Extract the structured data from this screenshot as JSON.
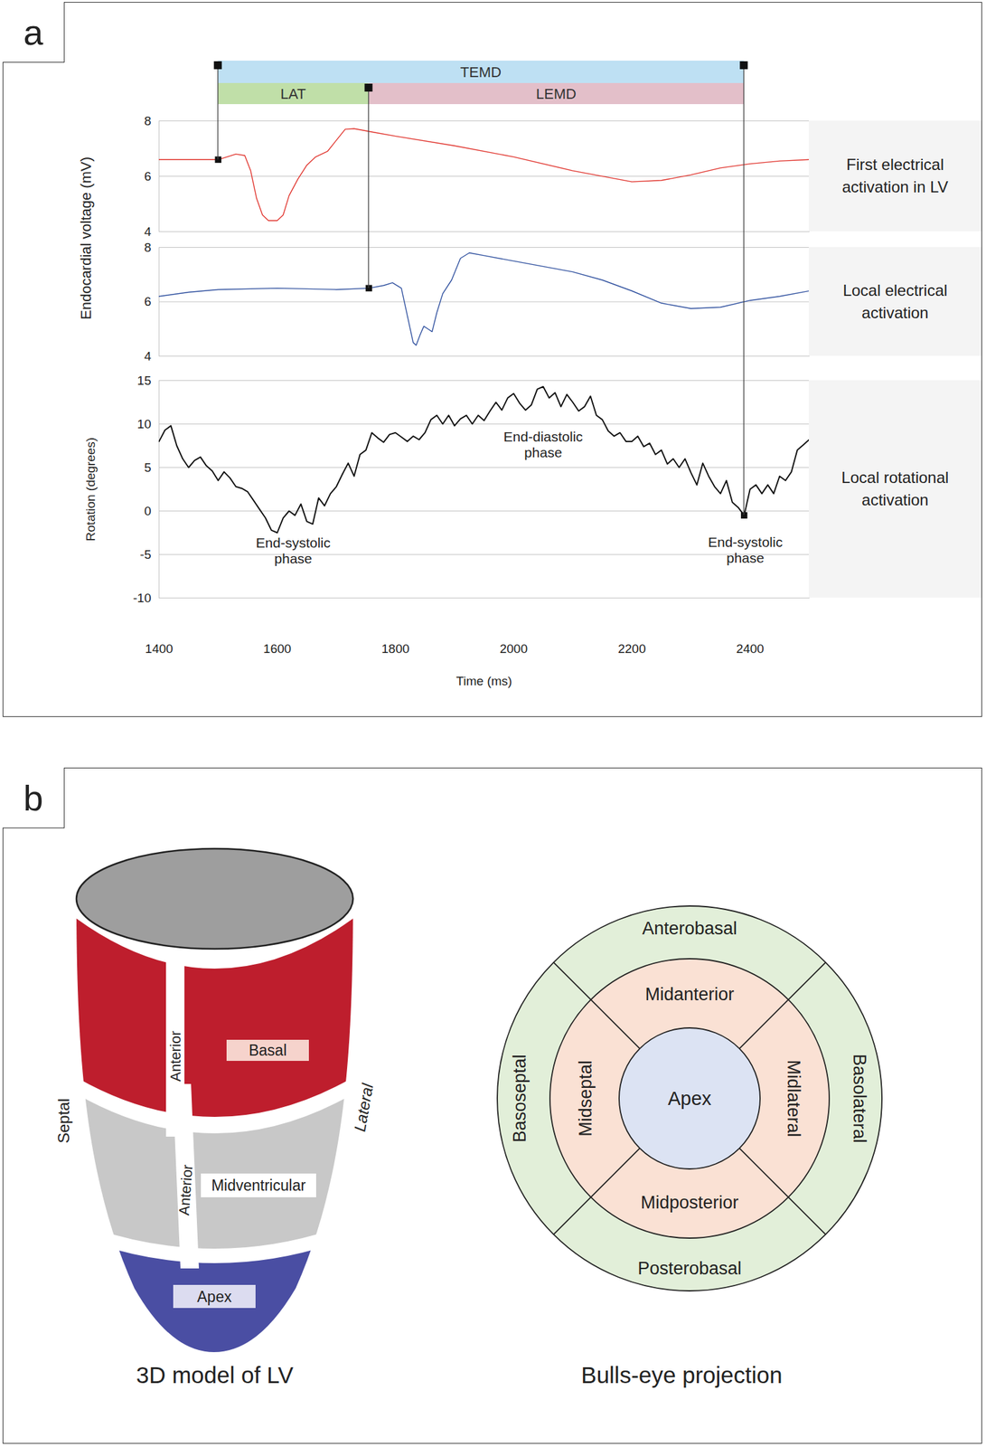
{
  "chart_data": [
    {
      "type": "line",
      "title": "First electrical activation in LV",
      "color": "#e0322b",
      "x": [
        1400,
        1500,
        1515,
        1530,
        1545,
        1555,
        1565,
        1575,
        1585,
        1600,
        1610,
        1620,
        1635,
        1650,
        1665,
        1685,
        1700,
        1715,
        1730,
        1760,
        1800,
        1900,
        2000,
        2100,
        2200,
        2250,
        2300,
        2350,
        2400,
        2450,
        2500
      ],
      "values": [
        6.6,
        6.6,
        6.7,
        6.8,
        6.75,
        6.2,
        5.2,
        4.6,
        4.4,
        4.4,
        4.6,
        5.3,
        5.9,
        6.4,
        6.7,
        6.9,
        7.3,
        7.7,
        7.72,
        7.6,
        7.45,
        7.1,
        6.7,
        6.2,
        5.8,
        5.85,
        6.05,
        6.3,
        6.45,
        6.55,
        6.6
      ],
      "xlim": [
        1400,
        2500
      ],
      "xticks": [
        1400,
        1600,
        1800,
        2000,
        2200,
        2400
      ],
      "ylim": [
        4,
        8
      ],
      "yticks": [
        4,
        6,
        8
      ],
      "grid": true,
      "tick_labels": "y",
      "activation_point": {
        "x": 1500,
        "y": 6.6
      }
    },
    {
      "type": "line",
      "title": "Local electrical activation",
      "color": "#2e4f9e",
      "x": [
        1400,
        1450,
        1500,
        1600,
        1700,
        1755,
        1780,
        1795,
        1810,
        1820,
        1830,
        1835,
        1842,
        1848,
        1855,
        1862,
        1870,
        1880,
        1895,
        1910,
        1925,
        1950,
        2000,
        2050,
        2100,
        2150,
        2200,
        2250,
        2300,
        2350,
        2400,
        2450,
        2500
      ],
      "values": [
        6.2,
        6.35,
        6.45,
        6.5,
        6.45,
        6.5,
        6.6,
        6.7,
        6.5,
        5.5,
        4.5,
        4.4,
        4.8,
        5.1,
        5.0,
        4.9,
        5.6,
        6.3,
        6.8,
        7.6,
        7.8,
        7.7,
        7.5,
        7.3,
        7.1,
        6.8,
        6.4,
        5.95,
        5.75,
        5.8,
        6.05,
        6.2,
        6.4
      ],
      "xlim": [
        1400,
        2500
      ],
      "xticks": [
        1400,
        1600,
        1800,
        2000,
        2200,
        2400
      ],
      "ylim": [
        4,
        8
      ],
      "yticks": [
        4,
        6,
        8
      ],
      "grid": true,
      "tick_labels": "y",
      "activation_point": {
        "x": 1755,
        "y": 6.5
      }
    },
    {
      "type": "line",
      "title": "Local rotational activation",
      "color": "#111111",
      "x_label": "Time (ms)",
      "y_label": "Rotation (degrees)",
      "x": [
        1400,
        1410,
        1420,
        1430,
        1440,
        1450,
        1460,
        1470,
        1480,
        1490,
        1500,
        1510,
        1520,
        1530,
        1540,
        1550,
        1560,
        1570,
        1580,
        1590,
        1600,
        1610,
        1620,
        1630,
        1640,
        1650,
        1660,
        1670,
        1680,
        1690,
        1700,
        1710,
        1720,
        1730,
        1740,
        1750,
        1760,
        1770,
        1780,
        1790,
        1800,
        1810,
        1820,
        1830,
        1840,
        1850,
        1860,
        1870,
        1880,
        1890,
        1900,
        1910,
        1920,
        1930,
        1940,
        1950,
        1960,
        1970,
        1980,
        1990,
        2000,
        2010,
        2020,
        2030,
        2040,
        2050,
        2060,
        2070,
        2080,
        2090,
        2100,
        2110,
        2120,
        2130,
        2140,
        2150,
        2160,
        2170,
        2180,
        2190,
        2200,
        2210,
        2220,
        2230,
        2240,
        2250,
        2260,
        2270,
        2280,
        2290,
        2300,
        2310,
        2320,
        2330,
        2340,
        2350,
        2360,
        2370,
        2380,
        2390,
        2400,
        2410,
        2420,
        2430,
        2440,
        2450,
        2460,
        2470,
        2480,
        2490,
        2500
      ],
      "values": [
        8.0,
        9.3,
        9.8,
        7.5,
        6.0,
        5.0,
        5.8,
        6.2,
        5.2,
        4.6,
        3.5,
        4.5,
        3.8,
        2.8,
        2.6,
        2.2,
        1.2,
        0.2,
        -0.8,
        -2.2,
        -2.5,
        -0.8,
        0.0,
        -0.5,
        0.8,
        -1.2,
        -1.5,
        1.5,
        0.6,
        2.0,
        2.8,
        4.2,
        5.5,
        4.0,
        6.5,
        7.0,
        9.0,
        8.4,
        7.9,
        8.8,
        9.0,
        8.5,
        8.0,
        8.6,
        8.2,
        9.0,
        10.5,
        11.0,
        10.0,
        11.0,
        9.8,
        10.6,
        11.0,
        10.0,
        11.0,
        10.4,
        11.5,
        12.5,
        11.6,
        13.0,
        13.5,
        12.4,
        11.6,
        12.2,
        14.0,
        14.3,
        13.0,
        13.6,
        12.0,
        13.4,
        12.5,
        11.5,
        12.0,
        13.2,
        11.0,
        10.5,
        9.2,
        8.6,
        9.0,
        8.0,
        8.0,
        8.6,
        7.4,
        7.8,
        6.5,
        7.0,
        5.4,
        6.0,
        5.0,
        6.0,
        4.4,
        3.0,
        5.5,
        4.0,
        2.8,
        2.0,
        3.5,
        1.0,
        0.4,
        -0.5,
        2.5,
        3.0,
        2.0,
        3.0,
        2.0,
        4.0,
        3.5,
        4.5,
        7.0,
        7.6,
        8.2
      ],
      "xlim": [
        1400,
        2500
      ],
      "xticks": [
        1400,
        1600,
        1800,
        2000,
        2200,
        2400
      ],
      "ylim": [
        -10,
        15
      ],
      "yticks": [
        -10,
        -5,
        0,
        5,
        10,
        15
      ],
      "grid": true,
      "activation_point": {
        "x": 2390,
        "y": -0.5
      },
      "annotations": [
        {
          "text": "End-systolic\nphase",
          "x": 1627,
          "y": -2.9
        },
        {
          "text": "End-diastolic\nphase",
          "x": 2050,
          "y": 9.3
        },
        {
          "text": "End-systolic\nphase",
          "x": 2392,
          "y": -2.8
        }
      ]
    }
  ],
  "panel_a": {
    "label": "a",
    "shared_y_label": "Endocardial voltage (mV)",
    "intervals": [
      {
        "label": "TEMD",
        "start": 1500,
        "end": 2390,
        "color": "#bee0f3",
        "parts": [
          {
            "label": "LAT",
            "start": 1500,
            "end": 1755,
            "color": "#c0dfa8"
          },
          {
            "label": "LEMD",
            "start": 1755,
            "end": 2390,
            "color": "#e3bfc9"
          }
        ]
      }
    ]
  },
  "panel_b": {
    "label": "b",
    "model": {
      "caption": "3D model of LV",
      "regions": [
        {
          "label": "Basal",
          "color": "#be1e2d"
        },
        {
          "label": "Midventricular",
          "color": "#c8c8c8"
        },
        {
          "label": "Apex",
          "color": "#4a4ea3"
        }
      ],
      "anterior_labels": [
        "Anterior",
        "Anterior"
      ],
      "septal_label": "Septal",
      "lateral_label": "Lateral"
    },
    "bullseye": {
      "caption": "Bulls-eye projection",
      "outer_ring": {
        "color": "#e2efd9",
        "segments": [
          "Anterobasal",
          "Basolateral",
          "Posterobasal",
          "Basoseptal"
        ]
      },
      "middle_ring": {
        "color": "#fae1d4",
        "segments": [
          "Midanterior",
          "Midlateral",
          "Midposterior",
          "Midseptal"
        ]
      },
      "center": {
        "label": "Apex",
        "color": "#dce3f3"
      }
    }
  }
}
